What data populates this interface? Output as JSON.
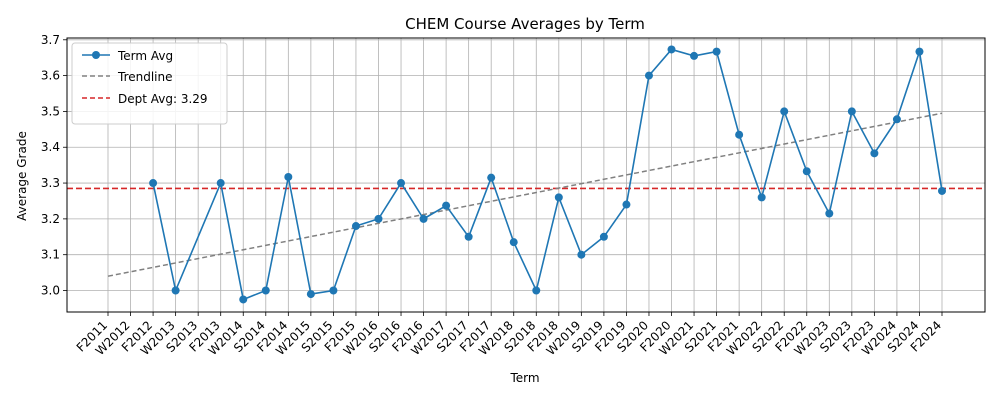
{
  "chart_data": {
    "type": "line",
    "title": "CHEM Course Averages by Term",
    "xlabel": "Term",
    "ylabel": "Average Grade",
    "ylim": [
      2.94,
      3.705
    ],
    "yticks": [
      "3.0",
      "3.1",
      "3.2",
      "3.3",
      "3.4",
      "3.5",
      "3.6",
      "3.7"
    ],
    "grid": true,
    "legend_position": "top-left",
    "categories": [
      "F2011",
      "W2012",
      "F2012",
      "W2013",
      "S2013",
      "F2013",
      "W2014",
      "S2014",
      "F2014",
      "W2015",
      "S2015",
      "F2015",
      "W2016",
      "S2016",
      "F2016",
      "W2017",
      "S2017",
      "F2017",
      "W2018",
      "S2018",
      "F2018",
      "W2019",
      "S2019",
      "F2019",
      "S2020",
      "F2020",
      "W2021",
      "S2021",
      "F2021",
      "W2022",
      "S2022",
      "F2022",
      "W2023",
      "S2023",
      "F2023",
      "W2024",
      "S2024",
      "F2024"
    ],
    "series": [
      {
        "name": "Term Avg",
        "color": "#1f77b4",
        "values": [
          null,
          null,
          3.3,
          3.0,
          null,
          3.3,
          2.975,
          3.0,
          3.317,
          2.99,
          3.0,
          3.18,
          3.2,
          3.3,
          3.2,
          3.237,
          3.15,
          3.315,
          3.135,
          3.0,
          3.26,
          3.1,
          3.15,
          3.24,
          3.6,
          3.673,
          3.655,
          3.667,
          3.435,
          3.26,
          3.5,
          3.333,
          3.215,
          3.5,
          3.383,
          3.478,
          3.667,
          3.278
        ]
      }
    ],
    "trendline": {
      "name": "Trendline",
      "color": "#808080",
      "start": 3.04,
      "end": 3.495
    },
    "reference_line": {
      "name": "Dept Avg: 3.29",
      "value": 3.285,
      "color": "#d62728"
    }
  }
}
